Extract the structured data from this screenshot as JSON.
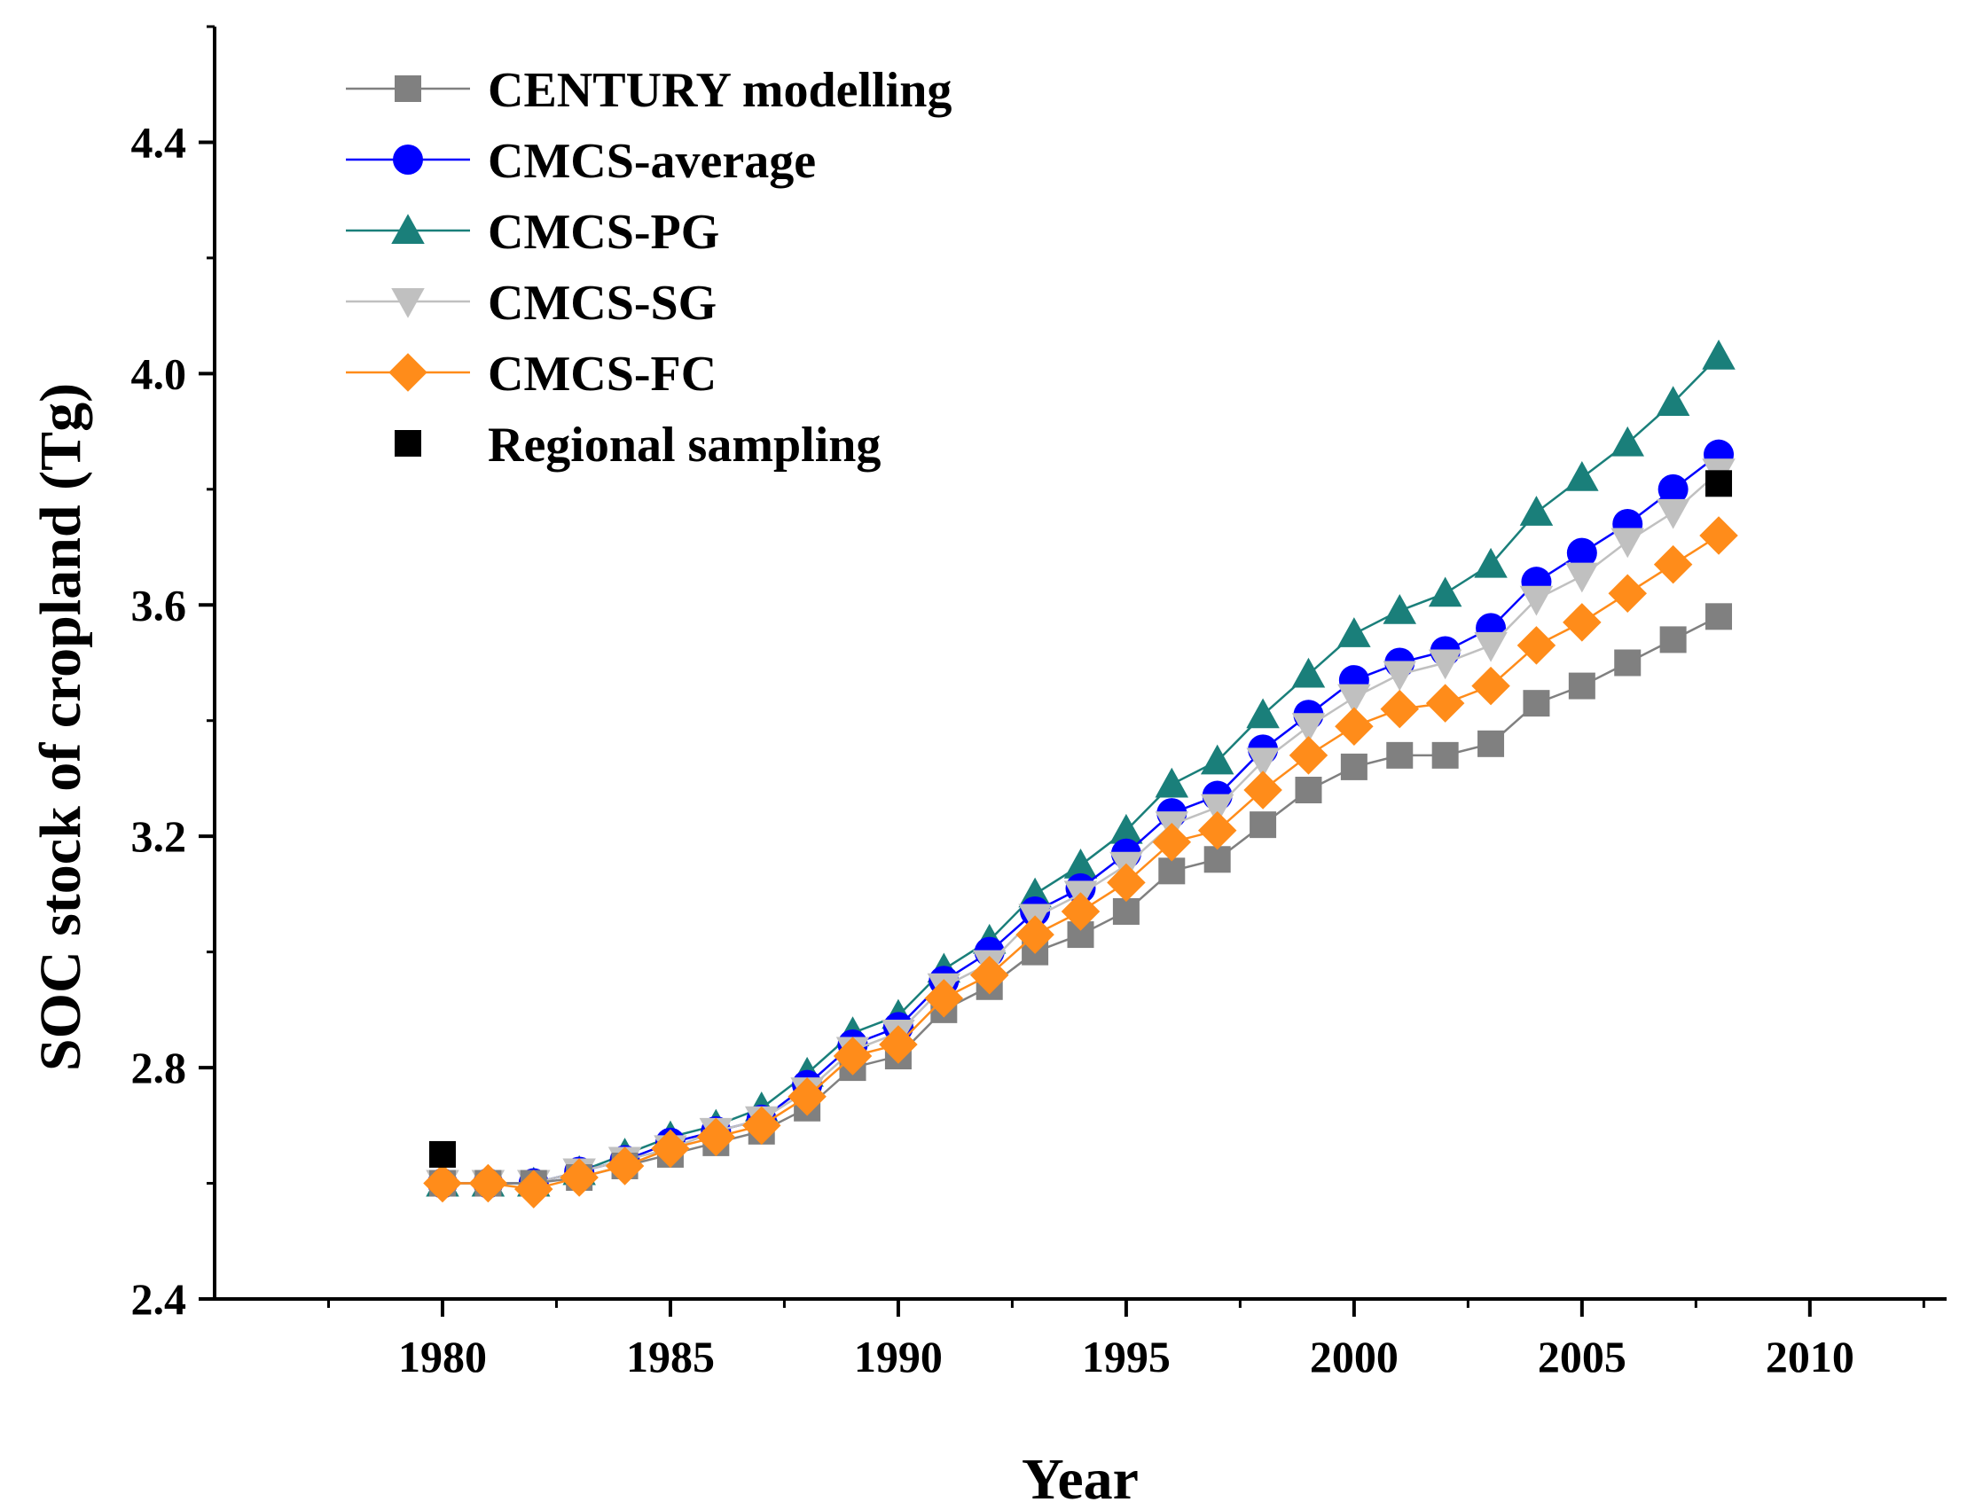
{
  "chart_data": {
    "type": "line",
    "xlabel": "Year",
    "ylabel": "SOC stock of cropland (Tg)",
    "xlim": [
      1975,
      2013
    ],
    "ylim": [
      2.4,
      4.6
    ],
    "xticks": [
      1980,
      1985,
      1990,
      1995,
      2000,
      2005,
      2010
    ],
    "xtick_labels": [
      "1980",
      "1985",
      "1990",
      "1995",
      "2000",
      "2005",
      "2010"
    ],
    "yticks": [
      2.4,
      2.8,
      3.2,
      3.6,
      4.0,
      4.4
    ],
    "ytick_labels": [
      "2.4",
      "2.8",
      "3.2",
      "3.6",
      "4.0",
      "4.4"
    ],
    "legend_position": "top-left",
    "x": [
      1980,
      1981,
      1982,
      1983,
      1984,
      1985,
      1986,
      1987,
      1988,
      1989,
      1990,
      1991,
      1992,
      1993,
      1994,
      1995,
      1996,
      1997,
      1998,
      1999,
      2000,
      2001,
      2002,
      2003,
      2004,
      2005,
      2006,
      2007,
      2008
    ],
    "series": [
      {
        "name": "CENTURY modelling",
        "color": "#808080",
        "marker": "square",
        "line": true,
        "values": [
          2.6,
          2.6,
          2.6,
          2.61,
          2.63,
          2.65,
          2.67,
          2.69,
          2.73,
          2.8,
          2.82,
          2.9,
          2.94,
          3.0,
          3.03,
          3.07,
          3.14,
          3.16,
          3.22,
          3.28,
          3.32,
          3.34,
          3.34,
          3.36,
          3.43,
          3.46,
          3.5,
          3.54,
          3.58
        ]
      },
      {
        "name": "CMCS-average",
        "color": "#0000ff",
        "marker": "circle",
        "line": true,
        "values": [
          2.6,
          2.6,
          2.6,
          2.62,
          2.64,
          2.67,
          2.69,
          2.71,
          2.77,
          2.84,
          2.87,
          2.95,
          3.0,
          3.07,
          3.11,
          3.17,
          3.24,
          3.27,
          3.35,
          3.41,
          3.47,
          3.5,
          3.52,
          3.56,
          3.64,
          3.69,
          3.74,
          3.8,
          3.86
        ]
      },
      {
        "name": "CMCS-PG",
        "color": "#1a7f7a",
        "marker": "triangle-up",
        "line": true,
        "values": [
          2.6,
          2.6,
          2.6,
          2.62,
          2.65,
          2.68,
          2.7,
          2.73,
          2.79,
          2.86,
          2.89,
          2.97,
          3.02,
          3.1,
          3.15,
          3.21,
          3.29,
          3.33,
          3.41,
          3.48,
          3.55,
          3.59,
          3.62,
          3.67,
          3.76,
          3.82,
          3.88,
          3.95,
          4.03
        ]
      },
      {
        "name": "CMCS-SG",
        "color": "#c0c0c0",
        "marker": "triangle-down",
        "line": true,
        "values": [
          2.6,
          2.6,
          2.6,
          2.62,
          2.64,
          2.66,
          2.69,
          2.71,
          2.76,
          2.83,
          2.86,
          2.94,
          2.98,
          3.06,
          3.1,
          3.15,
          3.22,
          3.25,
          3.33,
          3.39,
          3.44,
          3.48,
          3.5,
          3.53,
          3.61,
          3.65,
          3.71,
          3.76,
          3.83
        ]
      },
      {
        "name": "CMCS-FC",
        "color": "#ff8c1a",
        "marker": "diamond",
        "line": true,
        "values": [
          2.6,
          2.6,
          2.59,
          2.61,
          2.63,
          2.66,
          2.68,
          2.7,
          2.75,
          2.82,
          2.84,
          2.92,
          2.96,
          3.03,
          3.07,
          3.12,
          3.19,
          3.21,
          3.28,
          3.34,
          3.39,
          3.42,
          3.43,
          3.46,
          3.53,
          3.57,
          3.62,
          3.67,
          3.72
        ]
      },
      {
        "name": "Regional sampling",
        "color": "#000000",
        "marker": "square",
        "line": false,
        "x": [
          1980,
          2008
        ],
        "values": [
          2.65,
          3.81
        ]
      }
    ]
  }
}
